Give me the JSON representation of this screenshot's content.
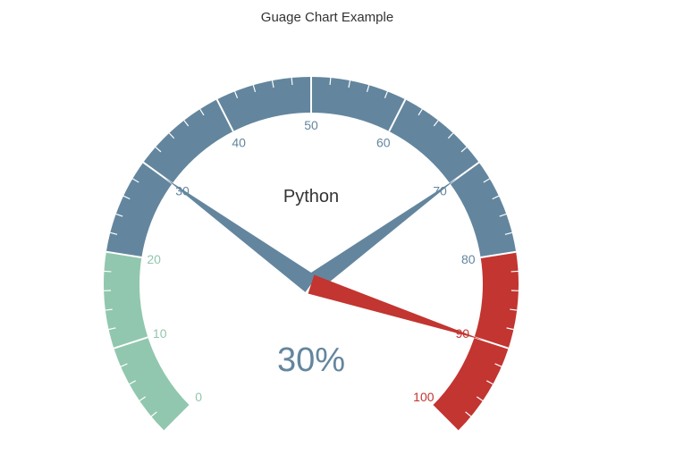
{
  "title": "Guage Chart Example",
  "chart_data": {
    "type": "gauge",
    "title": "Guage Chart Example",
    "series_name": "Python",
    "min": 0,
    "max": 100,
    "start_angle_deg": 225,
    "end_angle_deg": -45,
    "split_number": 10,
    "minor_ticks_per_split": 5,
    "axis_labels": [
      "0",
      "10",
      "20",
      "30",
      "40",
      "50",
      "60",
      "70",
      "80",
      "90",
      "100"
    ],
    "color_bands": [
      {
        "to_fraction": 0.2,
        "color": "#91c7ae"
      },
      {
        "to_fraction": 0.8,
        "color": "#63869e"
      },
      {
        "to_fraction": 1.0,
        "color": "#c23531"
      }
    ],
    "pointers": [
      {
        "value": 30,
        "color": "#63869e"
      },
      {
        "value": 70,
        "color": "#63869e"
      },
      {
        "value": 90,
        "color": "#c23531"
      }
    ],
    "detail_value": "30%",
    "detail_color": "#63869e"
  }
}
